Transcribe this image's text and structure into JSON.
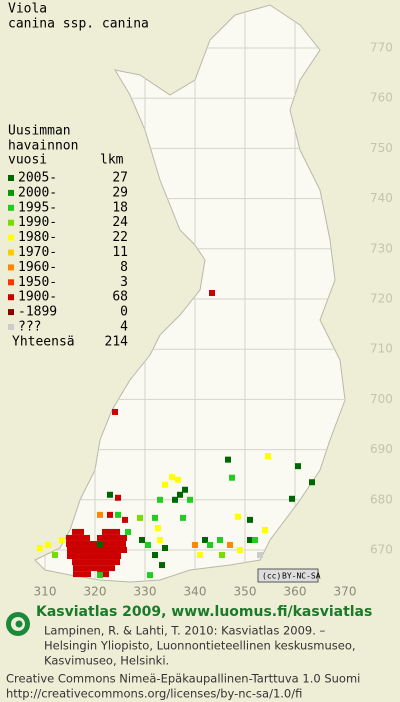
{
  "title": [
    "Viola",
    "canina ssp. canina"
  ],
  "legend": {
    "heading": [
      "Uusimman",
      "havainnon",
      "vuosi"
    ],
    "count_heading": "lkm",
    "items": [
      {
        "period": "2005-",
        "count": 27,
        "color": "#006600"
      },
      {
        "period": "2000-",
        "count": 29,
        "color": "#009900"
      },
      {
        "period": "1995-",
        "count": 18,
        "color": "#22cc22"
      },
      {
        "period": "1990-",
        "count": 24,
        "color": "#77dd00"
      },
      {
        "period": "1980-",
        "count": 22,
        "color": "#ffff00"
      },
      {
        "period": "1970-",
        "count": 11,
        "color": "#ffcc00"
      },
      {
        "period": "1960-",
        "count": 8,
        "color": "#ff8800"
      },
      {
        "period": "1950-",
        "count": 3,
        "color": "#ff3300"
      },
      {
        "period": "1900-",
        "count": 68,
        "color": "#cc0000"
      },
      {
        "period": "-1899",
        "count": 0,
        "color": "#880000"
      },
      {
        "period": "???",
        "count": 4,
        "color": "#cccccc"
      }
    ],
    "total_label": "Yhteensä",
    "total": 214
  },
  "map": {
    "x_labels": [
      310,
      320,
      330,
      340,
      350,
      360,
      370
    ],
    "y_labels": [
      770,
      760,
      750,
      740,
      730,
      720,
      710,
      700,
      690,
      680,
      670
    ],
    "records": [
      [
        316,
        673.6,
        8
      ],
      [
        317.2,
        673.6,
        8
      ],
      [
        322,
        673.6,
        8
      ],
      [
        323.2,
        673.6,
        8
      ],
      [
        324.4,
        673.6,
        8
      ],
      [
        314.8,
        672.4,
        8
      ],
      [
        316,
        672.4,
        8
      ],
      [
        317.2,
        672.4,
        8
      ],
      [
        318.4,
        672.4,
        8
      ],
      [
        321,
        672.4,
        8
      ],
      [
        322.2,
        672.4,
        8
      ],
      [
        323.4,
        672.4,
        8
      ],
      [
        324.6,
        672.4,
        8
      ],
      [
        325.8,
        672.4,
        8
      ],
      [
        314.8,
        671.2,
        8
      ],
      [
        316,
        671.2,
        8
      ],
      [
        317.2,
        671.2,
        8
      ],
      [
        318.4,
        671.2,
        8
      ],
      [
        319.6,
        671.2,
        8
      ],
      [
        320.8,
        671.2,
        8
      ],
      [
        322,
        671.2,
        8
      ],
      [
        323.2,
        671.2,
        8
      ],
      [
        324.4,
        671.2,
        8
      ],
      [
        325.6,
        671.2,
        8
      ],
      [
        315,
        670,
        8
      ],
      [
        316.2,
        670,
        8
      ],
      [
        317.4,
        670,
        8
      ],
      [
        318.6,
        670,
        8
      ],
      [
        319.8,
        670,
        8
      ],
      [
        321,
        670,
        8
      ],
      [
        322.2,
        670,
        8
      ],
      [
        323.4,
        670,
        8
      ],
      [
        324.6,
        670,
        8
      ],
      [
        325.8,
        670,
        8
      ],
      [
        315,
        668.8,
        8
      ],
      [
        316.2,
        668.8,
        8
      ],
      [
        317.4,
        668.8,
        8
      ],
      [
        318.6,
        668.8,
        8
      ],
      [
        319.8,
        668.8,
        8
      ],
      [
        321,
        668.8,
        8
      ],
      [
        322.2,
        668.8,
        8
      ],
      [
        323.4,
        668.8,
        8
      ],
      [
        324.6,
        668.8,
        8
      ],
      [
        316,
        667.6,
        8
      ],
      [
        317.2,
        667.6,
        8
      ],
      [
        318.4,
        667.6,
        8
      ],
      [
        319.6,
        667.6,
        8
      ],
      [
        320.8,
        667.6,
        8
      ],
      [
        322,
        667.6,
        8
      ],
      [
        323.2,
        667.6,
        8
      ],
      [
        324.4,
        667.6,
        8
      ],
      [
        316.2,
        666.4,
        8
      ],
      [
        317.4,
        666.4,
        8
      ],
      [
        318.6,
        666.4,
        8
      ],
      [
        319.8,
        666.4,
        8
      ],
      [
        321,
        666.4,
        8
      ],
      [
        322.2,
        666.4,
        8
      ],
      [
        323.4,
        666.4,
        8
      ],
      [
        316.2,
        665.2,
        8
      ],
      [
        317.4,
        665.2,
        8
      ],
      [
        318.6,
        665.2,
        8
      ],
      [
        321,
        665.2,
        8
      ],
      [
        322.2,
        665.2,
        8
      ],
      [
        309,
        670.4,
        4
      ],
      [
        310.6,
        671,
        4
      ],
      [
        312,
        669,
        3
      ],
      [
        313.4,
        672,
        4
      ],
      [
        321,
        671,
        0
      ],
      [
        323,
        677,
        8
      ],
      [
        324.6,
        677,
        2
      ],
      [
        326,
        676,
        8
      ],
      [
        321,
        677,
        6
      ],
      [
        323,
        681,
        0
      ],
      [
        324.6,
        680.4,
        8
      ],
      [
        326.6,
        673.6,
        2
      ],
      [
        329.4,
        672,
        0
      ],
      [
        330.6,
        671,
        2
      ],
      [
        332,
        669,
        0
      ],
      [
        333,
        672,
        4
      ],
      [
        334,
        670.4,
        0
      ],
      [
        333.4,
        667,
        0
      ],
      [
        331,
        665,
        2
      ],
      [
        332.6,
        674.4,
        4
      ],
      [
        333,
        680,
        2
      ],
      [
        334,
        683,
        4
      ],
      [
        335.4,
        684.5,
        4
      ],
      [
        336.6,
        684,
        4
      ],
      [
        338,
        682,
        0
      ],
      [
        337,
        681,
        0
      ],
      [
        336,
        680,
        0
      ],
      [
        339,
        680,
        2
      ],
      [
        337.6,
        676.4,
        2
      ],
      [
        332,
        676.4,
        2
      ],
      [
        329,
        676.4,
        3
      ],
      [
        340,
        671,
        6
      ],
      [
        342,
        672,
        0
      ],
      [
        343,
        671,
        2
      ],
      [
        341,
        669,
        4
      ],
      [
        345,
        672,
        2
      ],
      [
        347,
        671,
        6
      ],
      [
        349,
        670,
        4
      ],
      [
        345.4,
        669,
        3
      ],
      [
        351,
        672,
        0
      ],
      [
        352,
        672,
        2
      ],
      [
        353,
        669,
        10
      ],
      [
        354,
        674,
        4
      ],
      [
        351,
        676,
        0
      ],
      [
        348.6,
        676.6,
        4
      ],
      [
        346.6,
        688,
        0
      ],
      [
        347.4,
        684.4,
        2
      ],
      [
        354.6,
        688.7,
        4
      ],
      [
        360.6,
        686.7,
        0
      ],
      [
        359.4,
        680.2,
        0
      ],
      [
        363.4,
        683.5,
        0
      ],
      [
        343.4,
        721.2,
        8
      ],
      [
        324,
        697.5,
        8
      ],
      [
        321,
        665,
        2
      ]
    ]
  },
  "badge": "BY-NC-SA",
  "footer": {
    "headline": "Kasviatlas 2009, www.luomus.fi/kasviatlas",
    "citation": [
      "Lampinen, R. & Lahti, T. 2010: Kasviatlas 2009. –",
      "Helsingin Yliopisto, Luonnontieteellinen keskusmuseo,",
      "Kasvimuseo, Helsinki."
    ],
    "license": [
      "Creative Commons Nimeä-Epäkaupallinen-Tarttuva 1.0 Suomi",
      "http://creativecommons.org/licenses/by-nc-sa/1.0/fi"
    ]
  }
}
